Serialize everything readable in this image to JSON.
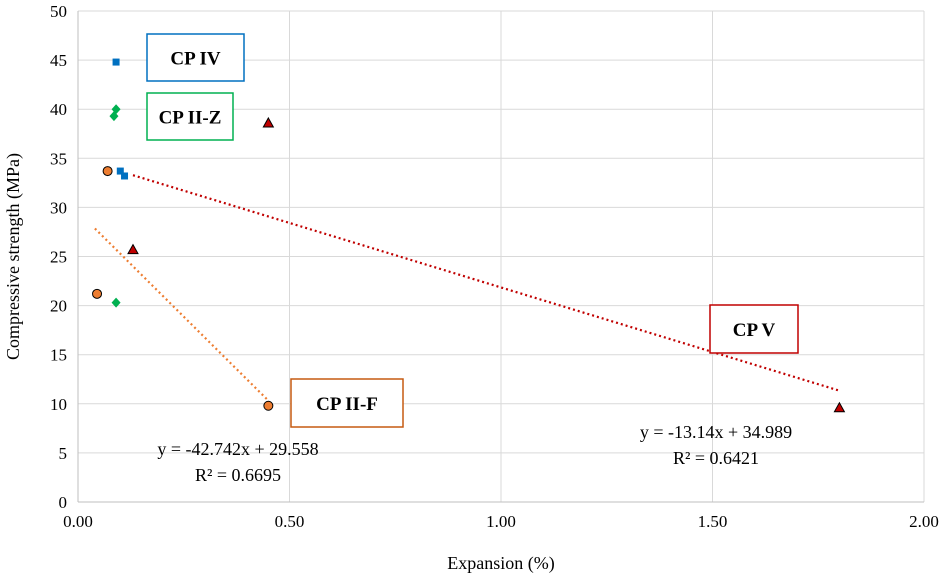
{
  "chart_data": {
    "type": "scatter",
    "xlabel": "Expansion (%)",
    "ylabel": "Compressive strength (MPa)",
    "xlim": [
      0,
      2.0
    ],
    "ylim": [
      0,
      50
    ],
    "x_ticks": [
      "0.00",
      "0.50",
      "1.00",
      "1.50",
      "2.00"
    ],
    "x_tick_values": [
      0,
      0.5,
      1.0,
      1.5,
      2.0
    ],
    "y_ticks": [
      "0",
      "5",
      "10",
      "15",
      "20",
      "25",
      "30",
      "35",
      "40",
      "45",
      "50"
    ],
    "y_tick_values": [
      0,
      5,
      10,
      15,
      20,
      25,
      30,
      35,
      40,
      45,
      50
    ],
    "grid": true,
    "series": [
      {
        "name": "CP IV",
        "marker": "square",
        "color": "#0070C0",
        "points": [
          [
            0.09,
            44.8
          ],
          [
            0.1,
            33.7
          ],
          [
            0.11,
            33.2
          ]
        ]
      },
      {
        "name": "CP II-Z",
        "marker": "diamond",
        "color": "#00B050",
        "points": [
          [
            0.09,
            40.0
          ],
          [
            0.085,
            39.3
          ],
          [
            0.09,
            20.3
          ]
        ]
      },
      {
        "name": "CP V",
        "marker": "triangle",
        "color": "#C00000",
        "points": [
          [
            0.45,
            38.6
          ],
          [
            0.13,
            25.7
          ],
          [
            1.8,
            9.6
          ]
        ]
      },
      {
        "name": "CP II-F",
        "marker": "circle",
        "color": "#ED7D31",
        "points": [
          [
            0.07,
            33.7
          ],
          [
            0.045,
            21.2
          ],
          [
            0.45,
            9.8
          ]
        ]
      }
    ],
    "trendlines": [
      {
        "series": "CP V",
        "color": "#C00000",
        "x_range": [
          0.13,
          1.8
        ],
        "slope": -13.14,
        "intercept": 34.989,
        "equation": "y = -13.14x + 34.989",
        "r2": "R² = 0.6421"
      },
      {
        "series": "CP II-F",
        "color": "#ED7D31",
        "x_range": [
          0.045,
          0.45
        ],
        "slope": -42.742,
        "intercept": 29.558,
        "equation": "y = -42.742x + 29.558",
        "r2": "R² = 0.6695"
      }
    ],
    "labels": [
      {
        "text": "CP IV",
        "color": "#0070C0"
      },
      {
        "text": "CP II-Z",
        "color": "#00B050"
      },
      {
        "text": "CP V",
        "color": "#C00000"
      },
      {
        "text": "CP II-F",
        "color": "#C55A11"
      }
    ]
  }
}
